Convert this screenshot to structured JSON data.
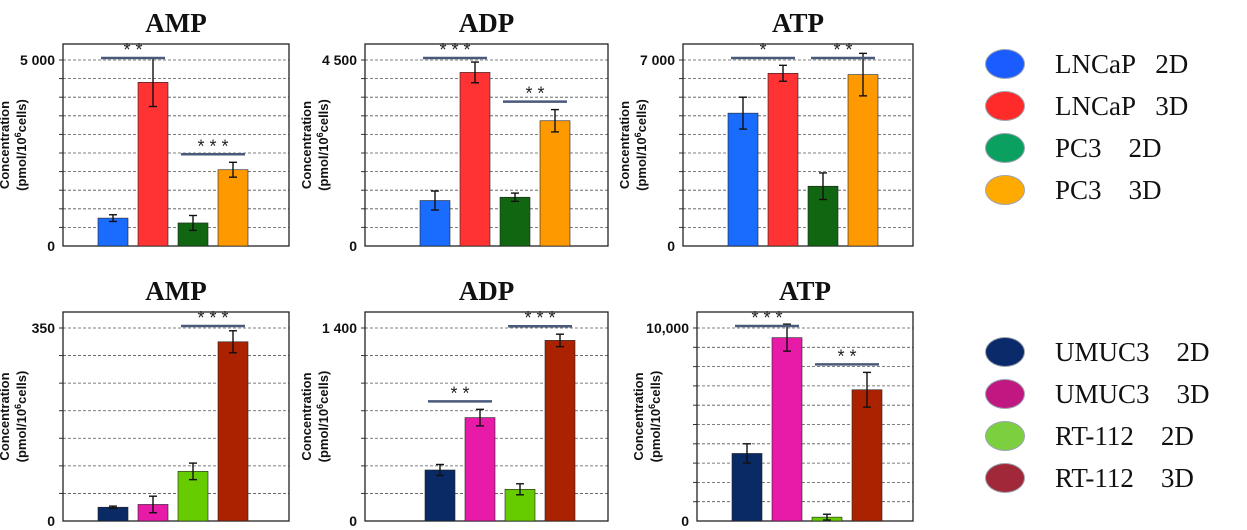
{
  "axis_label": {
    "line1": "Concentration",
    "line2_pre": "(pmol/10",
    "line2_sup": "6",
    "line2_post": "cells)"
  },
  "legends": [
    {
      "items": [
        {
          "label": "LNCaP   2D",
          "color": "#1a5cff"
        },
        {
          "label": "LNCaP   3D",
          "color": "#ff2a2a"
        },
        {
          "label": "PC3    2D",
          "color": "#0aa060"
        },
        {
          "label": "PC3    3D",
          "color": "#ffaa00"
        }
      ]
    },
    {
      "items": [
        {
          "label": "UMUC3    2D",
          "color": "#0a2a6a"
        },
        {
          "label": "UMUC3    3D",
          "color": "#c01880"
        },
        {
          "label": "RT-112    2D",
          "color": "#7cd040"
        },
        {
          "label": "RT-112    3D",
          "color": "#a02838"
        }
      ]
    }
  ],
  "chart_data": [
    {
      "type": "bar",
      "title": "AMP",
      "ylim": [
        0,
        5000
      ],
      "tick_labels": [
        {
          "value": 5000,
          "label": "5 000"
        },
        {
          "value": 0,
          "label": "0"
        }
      ],
      "grid_lines": 10,
      "categories": [
        "LNCaP 2D",
        "LNCaP 3D",
        "PC3 2D",
        "PC3 3D"
      ],
      "colors": [
        "#1a6cff",
        "#ff3333",
        "#116611",
        "#ff9900"
      ],
      "values": [
        750,
        4400,
        620,
        2050
      ],
      "errors": [
        90,
        650,
        200,
        200
      ],
      "significance": [
        {
          "from": 0,
          "to": 1,
          "label": "* *"
        },
        {
          "from": 2,
          "to": 3,
          "label": "* * *"
        }
      ]
    },
    {
      "type": "bar",
      "title": "ADP",
      "ylim": [
        0,
        4500
      ],
      "tick_labels": [
        {
          "value": 4500,
          "label": "4 500"
        },
        {
          "value": 0,
          "label": "0"
        }
      ],
      "grid_lines": 10,
      "categories": [
        "LNCaP 2D",
        "LNCaP 3D",
        "PC3 2D",
        "PC3 3D"
      ],
      "colors": [
        "#1a6cff",
        "#ff3333",
        "#116611",
        "#ff9900"
      ],
      "values": [
        1100,
        4200,
        1180,
        3030
      ],
      "errors": [
        230,
        250,
        100,
        270
      ],
      "significance": [
        {
          "from": 0,
          "to": 1,
          "label": "* * *"
        },
        {
          "from": 2,
          "to": 3,
          "label": "* *"
        }
      ]
    },
    {
      "type": "bar",
      "title": "ATP",
      "ylim": [
        0,
        7000
      ],
      "tick_labels": [
        {
          "value": 7000,
          "label": "7 000"
        },
        {
          "value": 0,
          "label": "0"
        }
      ],
      "grid_lines": 10,
      "categories": [
        "LNCaP 2D",
        "LNCaP 3D",
        "PC3 2D",
        "PC3 3D"
      ],
      "colors": [
        "#1a6cff",
        "#ff3333",
        "#116611",
        "#ff9900"
      ],
      "values": [
        5000,
        6500,
        2250,
        6450
      ],
      "errors": [
        600,
        300,
        500,
        800
      ],
      "significance": [
        {
          "from": 0,
          "to": 1,
          "label": "*"
        },
        {
          "from": 2,
          "to": 3,
          "label": "* *"
        }
      ]
    },
    {
      "type": "bar",
      "title": "AMP",
      "ylim": [
        0,
        350
      ],
      "tick_labels": [
        {
          "value": 350,
          "label": "350"
        },
        {
          "value": 0,
          "label": "0"
        }
      ],
      "grid_lines": 7,
      "categories": [
        "UMUC3 2D",
        "UMUC3 3D",
        "RT-112 2D",
        "RT-112 3D"
      ],
      "colors": [
        "#0a2a66",
        "#e81aa8",
        "#66cc00",
        "#aa2200"
      ],
      "values": [
        25,
        30,
        90,
        325
      ],
      "errors": [
        2,
        15,
        15,
        20
      ],
      "significance": [
        {
          "from": 2,
          "to": 3,
          "label": "* * *"
        }
      ]
    },
    {
      "type": "bar",
      "title": "ADP",
      "ylim": [
        0,
        1400
      ],
      "tick_labels": [
        {
          "value": 1400,
          "label": "1 400"
        },
        {
          "value": 0,
          "label": "0"
        }
      ],
      "grid_lines": 7,
      "categories": [
        "UMUC3 2D",
        "UMUC3 3D",
        "RT-112 2D",
        "RT-112 3D"
      ],
      "colors": [
        "#0a2a66",
        "#e81aa8",
        "#66cc00",
        "#aa2200"
      ],
      "values": [
        370,
        750,
        230,
        1310
      ],
      "errors": [
        40,
        60,
        40,
        45
      ],
      "significance": [
        {
          "from": 0,
          "to": 1,
          "label": "* *"
        },
        {
          "from": 2,
          "to": 3,
          "label": "* * *"
        }
      ]
    },
    {
      "type": "bar",
      "title": "ATP",
      "ylim": [
        0,
        10000
      ],
      "tick_labels": [
        {
          "value": 10000,
          "label": "10,000"
        },
        {
          "value": 0,
          "label": "0"
        }
      ],
      "grid_lines": 10,
      "categories": [
        "UMUC3 2D",
        "UMUC3 3D",
        "RT-112 2D",
        "RT-112 3D"
      ],
      "colors": [
        "#0a2a66",
        "#e81aa8",
        "#66cc00",
        "#aa2200"
      ],
      "values": [
        3500,
        9500,
        200,
        6800
      ],
      "errors": [
        500,
        700,
        150,
        900
      ],
      "significance": [
        {
          "from": 0,
          "to": 1,
          "label": "* * *"
        },
        {
          "from": 2,
          "to": 3,
          "label": "* *"
        }
      ]
    }
  ]
}
